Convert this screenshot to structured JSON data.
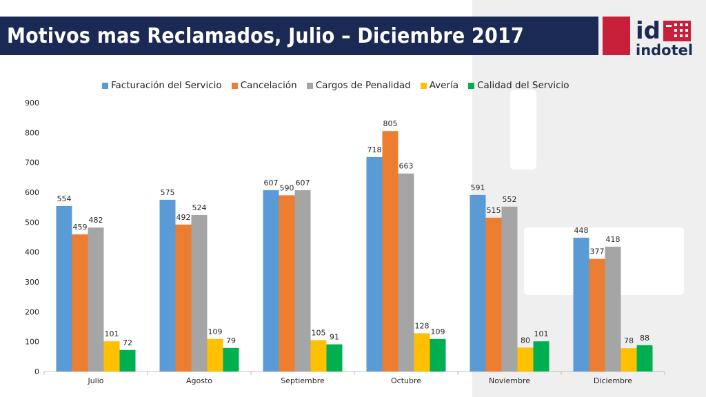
{
  "header": {
    "title": "Motivos mas Reclamados, Julio – Diciembre 2017",
    "logo_top": "id",
    "logo_bottom": "indotel"
  },
  "colors": {
    "title_bg": "#1b2a55",
    "logo_red": "#c8203a"
  },
  "chart_data": {
    "type": "bar",
    "categories": [
      "Julio",
      "Agosto",
      "Septiembre",
      "Octubre",
      "Noviembre",
      "Diciembre"
    ],
    "series": [
      {
        "name": "Facturación del Servicio",
        "color": "#5b9bd5",
        "values": [
          554,
          575,
          607,
          718,
          591,
          448
        ]
      },
      {
        "name": "Cancelación",
        "color": "#ed7d31",
        "values": [
          459,
          492,
          590,
          805,
          515,
          377
        ]
      },
      {
        "name": "Cargos de Penalidad",
        "color": "#a5a5a5",
        "values": [
          482,
          524,
          607,
          663,
          552,
          418
        ]
      },
      {
        "name": "Avería",
        "color": "#ffc000",
        "values": [
          101,
          109,
          105,
          128,
          80,
          78
        ]
      },
      {
        "name": "Calidad del Servicio",
        "color": "#00b050",
        "values": [
          72,
          79,
          91,
          109,
          101,
          88
        ]
      }
    ],
    "yticks": [
      0,
      100,
      200,
      300,
      400,
      500,
      600,
      700,
      800,
      900
    ],
    "ylim": [
      0,
      900
    ],
    "legend_position": "top",
    "data_labels": true,
    "grid": false
  }
}
